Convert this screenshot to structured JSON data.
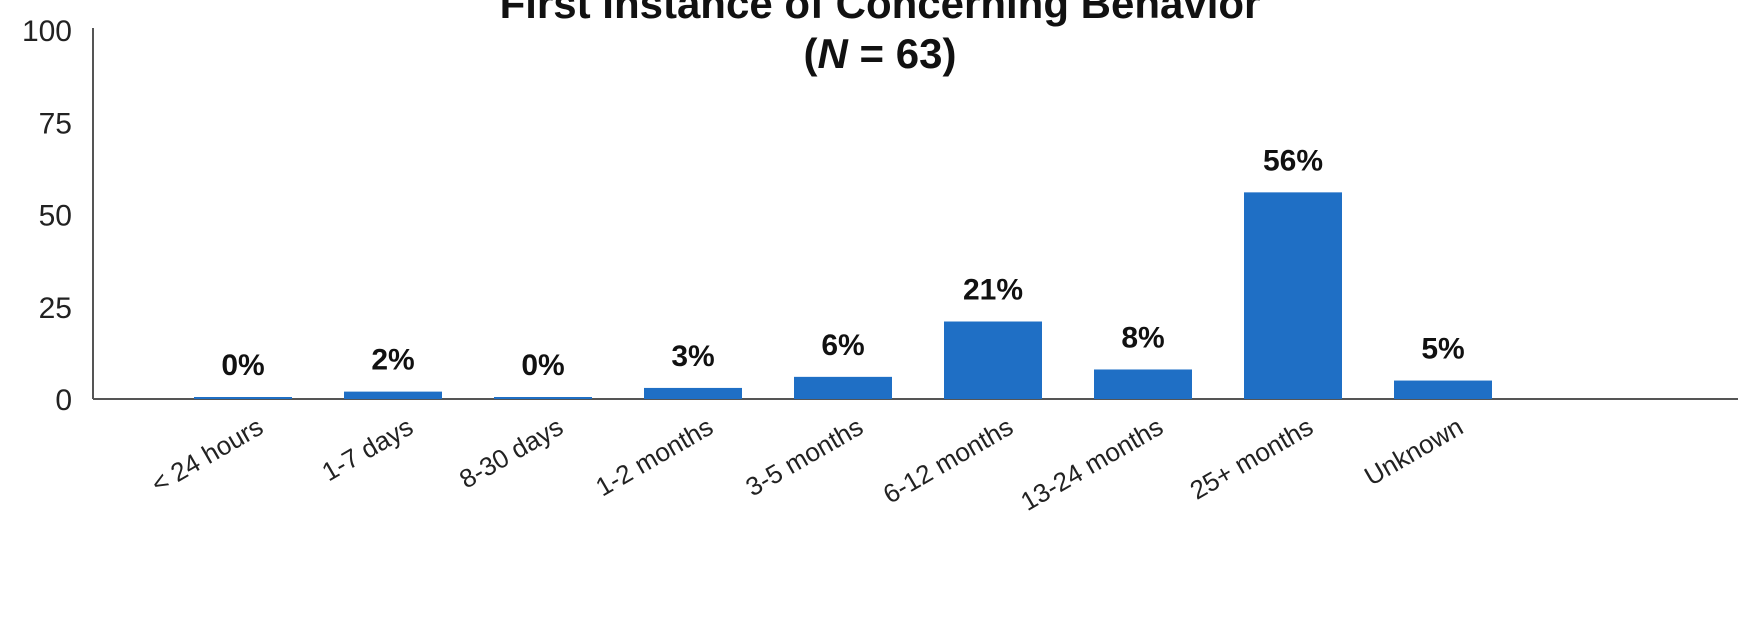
{
  "chart_data": {
    "type": "bar",
    "title": "First Instance of Concerning Behavior",
    "subtitle": "(N = 63)",
    "subtitle_parts": {
      "open": "(",
      "n": "N",
      "rest": " = 63)"
    },
    "categories": [
      "< 24 hours",
      "1-7 days",
      "8-30 days",
      "1-2 months",
      "3-5 months",
      "6-12 months",
      "13-24 months",
      "25+ months",
      "Unknown"
    ],
    "values": [
      0,
      2,
      0,
      3,
      6,
      21,
      8,
      56,
      5
    ],
    "value_labels": [
      "0%",
      "2%",
      "0%",
      "3%",
      "6%",
      "21%",
      "8%",
      "56%",
      "5%"
    ],
    "yticks": [
      0,
      25,
      50,
      75,
      100
    ],
    "ytick_labels": [
      "0",
      "25",
      "50",
      "75",
      "100"
    ],
    "ylim": [
      0,
      100
    ],
    "xlabel": "",
    "ylabel": "",
    "grid": false,
    "bar_color": "#1f6fc5",
    "axis_color": "#555555"
  }
}
